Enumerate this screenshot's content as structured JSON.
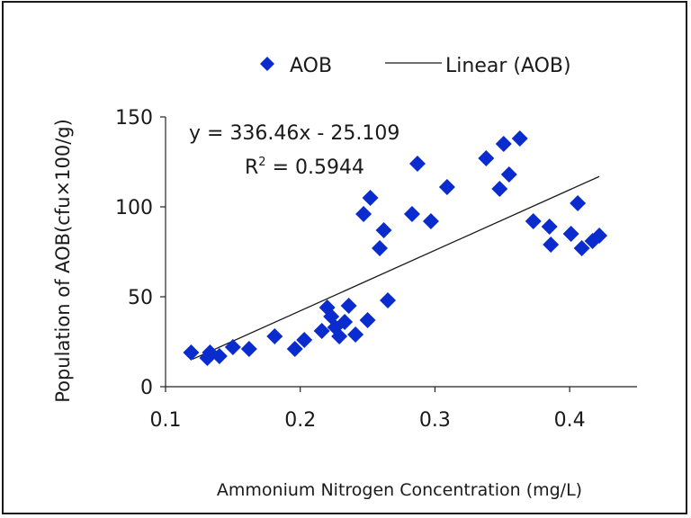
{
  "chart_data": {
    "type": "scatter",
    "title": "",
    "xlabel": "Ammonium Nitrogen Concentration  (mg/L)",
    "ylabel": "Population of AOB(cfu×100/g)",
    "xlim": [
      0.1,
      0.45
    ],
    "ylim": [
      0,
      150
    ],
    "xticks": [
      "0.1",
      "0.2",
      "0.3",
      "0.4"
    ],
    "yticks": [
      "0",
      "50",
      "100",
      "150"
    ],
    "grid": false,
    "legend": {
      "placement": "top",
      "entries": [
        {
          "label": "AOB",
          "marker": "diamond",
          "color": "#0a2ccf"
        },
        {
          "label": "Linear (AOB)",
          "marker": "line",
          "color": "#1a1a1a"
        }
      ]
    },
    "annotations": {
      "equation": "y = 336.46x - 25.109",
      "r2_prefix": "R",
      "r2_sup": "2",
      "r2_suffix": " = 0.5944"
    },
    "series": [
      {
        "name": "AOB",
        "color": "#0a2ccf",
        "marker": "diamond",
        "points": [
          [
            0.119,
            19
          ],
          [
            0.131,
            16
          ],
          [
            0.133,
            19
          ],
          [
            0.14,
            17
          ],
          [
            0.15,
            22
          ],
          [
            0.162,
            21
          ],
          [
            0.181,
            28
          ],
          [
            0.196,
            21
          ],
          [
            0.203,
            26
          ],
          [
            0.216,
            31
          ],
          [
            0.22,
            44
          ],
          [
            0.223,
            39
          ],
          [
            0.226,
            33
          ],
          [
            0.229,
            28
          ],
          [
            0.233,
            36
          ],
          [
            0.236,
            45
          ],
          [
            0.241,
            29
          ],
          [
            0.247,
            96
          ],
          [
            0.25,
            37
          ],
          [
            0.252,
            105
          ],
          [
            0.259,
            77
          ],
          [
            0.262,
            87
          ],
          [
            0.265,
            48
          ],
          [
            0.283,
            96
          ],
          [
            0.287,
            124
          ],
          [
            0.297,
            92
          ],
          [
            0.309,
            111
          ],
          [
            0.338,
            127
          ],
          [
            0.348,
            110
          ],
          [
            0.351,
            135
          ],
          [
            0.355,
            118
          ],
          [
            0.363,
            138
          ],
          [
            0.373,
            92
          ],
          [
            0.385,
            89
          ],
          [
            0.386,
            79
          ],
          [
            0.401,
            85
          ],
          [
            0.406,
            102
          ],
          [
            0.409,
            77
          ],
          [
            0.417,
            81
          ],
          [
            0.422,
            84
          ]
        ]
      }
    ],
    "trendline": {
      "name": "Linear (AOB)",
      "slope": 336.46,
      "intercept": -25.109,
      "x_range": [
        0.12,
        0.422
      ],
      "color": "#1a1a1a"
    }
  }
}
